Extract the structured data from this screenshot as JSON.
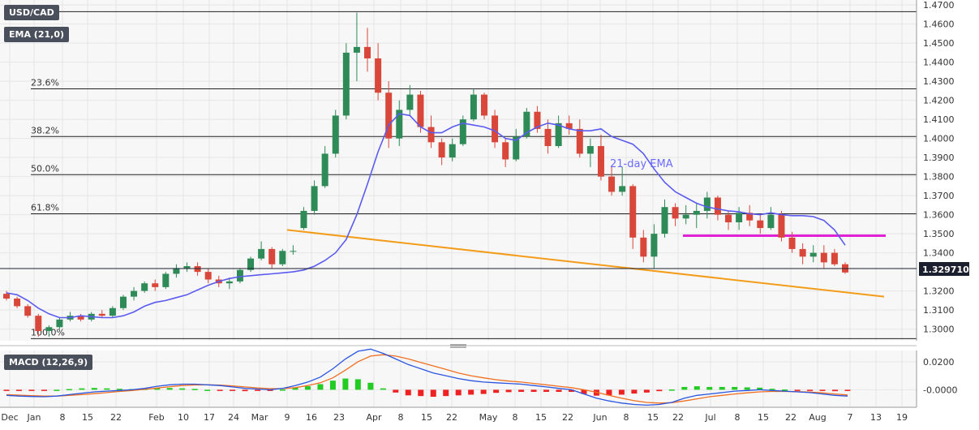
{
  "chart_data": [
    {
      "type": "candlestick",
      "symbol": "USD/CAD",
      "timeframe_note": "daily",
      "indicator_label": "EMA (21,0)",
      "y_axis": {
        "ticks": [
          "1.4700",
          "1.4600",
          "1.4500",
          "1.4400",
          "1.4300",
          "1.4200",
          "1.4100",
          "1.4000",
          "1.3900",
          "1.3800",
          "1.3700",
          "1.3600",
          "1.3500",
          "1.3400",
          "1.3200",
          "1.3100",
          "1.3000"
        ],
        "range": [
          1.296,
          1.4705
        ]
      },
      "x_axis": {
        "ticks": [
          "Dec",
          "Jan",
          "8",
          "15",
          "22",
          "Feb",
          "10",
          "17",
          "24",
          "Mar",
          "9",
          "16",
          "23",
          "Apr",
          "8",
          "15",
          "22",
          "May",
          "8",
          "15",
          "22",
          "Jun",
          "8",
          "15",
          "22",
          "Jul",
          "8",
          "15",
          "22",
          "Aug",
          "7",
          "13",
          "19"
        ]
      },
      "current_price": "1.329710",
      "fibonacci_levels": [
        {
          "label": "100.0%",
          "value": 1.295
        },
        {
          "label": "61.8%",
          "value": 1.3605
        },
        {
          "label": "50.0%",
          "value": 1.381
        },
        {
          "label": "38.2%",
          "value": 1.401
        },
        {
          "label": "23.6%",
          "value": 1.426
        },
        {
          "label": "",
          "value": 1.4665
        }
      ],
      "ema_label": "21-day EMA",
      "support_trendline": {
        "from": [
          "Mar 9",
          1.352
        ],
        "to": [
          "Aug 17",
          1.317
        ]
      },
      "resistance_line": {
        "from": [
          "Jun 24",
          1.349
        ],
        "to": [
          "Aug 7",
          1.349
        ]
      },
      "ema_series": [
        1.319,
        1.318,
        1.315,
        1.311,
        1.308,
        1.306,
        1.306,
        1.307,
        1.3065,
        1.306,
        1.306,
        1.307,
        1.309,
        1.312,
        1.314,
        1.315,
        1.3165,
        1.318,
        1.3205,
        1.323,
        1.325,
        1.3265,
        1.3275,
        1.328,
        1.3285,
        1.329,
        1.3295,
        1.33,
        1.331,
        1.333,
        1.336,
        1.34,
        1.347,
        1.36,
        1.376,
        1.393,
        1.407,
        1.413,
        1.412,
        1.406,
        1.403,
        1.403,
        1.406,
        1.408,
        1.407,
        1.406,
        1.404,
        1.4,
        1.399,
        1.403,
        1.406,
        1.408,
        1.407,
        1.405,
        1.404,
        1.404,
        1.405,
        1.401,
        1.399,
        1.397,
        1.392,
        1.384,
        1.377,
        1.372,
        1.369,
        1.366,
        1.364,
        1.363,
        1.362,
        1.3615,
        1.3605,
        1.36,
        1.361,
        1.36,
        1.3595,
        1.3595,
        1.359,
        1.357,
        1.352,
        1.344
      ],
      "candles": [
        [
          1.3185,
          1.32,
          1.315,
          1.316
        ],
        [
          1.316,
          1.317,
          1.311,
          1.312
        ],
        [
          1.312,
          1.313,
          1.306,
          1.307
        ],
        [
          1.307,
          1.308,
          1.296,
          1.299
        ],
        [
          1.299,
          1.302,
          1.296,
          1.301
        ],
        [
          1.301,
          1.306,
          1.3,
          1.305
        ],
        [
          1.305,
          1.309,
          1.304,
          1.307
        ],
        [
          1.307,
          1.308,
          1.304,
          1.305
        ],
        [
          1.305,
          1.309,
          1.304,
          1.308
        ],
        [
          1.308,
          1.31,
          1.306,
          1.307
        ],
        [
          1.307,
          1.312,
          1.306,
          1.311
        ],
        [
          1.311,
          1.318,
          1.31,
          1.317
        ],
        [
          1.317,
          1.322,
          1.315,
          1.32
        ],
        [
          1.32,
          1.325,
          1.319,
          1.324
        ],
        [
          1.324,
          1.326,
          1.32,
          1.322
        ],
        [
          1.322,
          1.33,
          1.321,
          1.329
        ],
        [
          1.329,
          1.334,
          1.327,
          1.332
        ],
        [
          1.332,
          1.335,
          1.33,
          1.333
        ],
        [
          1.333,
          1.335,
          1.328,
          1.33
        ],
        [
          1.33,
          1.332,
          1.324,
          1.326
        ],
        [
          1.326,
          1.328,
          1.322,
          1.324
        ],
        [
          1.324,
          1.327,
          1.321,
          1.325
        ],
        [
          1.325,
          1.332,
          1.324,
          1.331
        ],
        [
          1.331,
          1.338,
          1.33,
          1.337
        ],
        [
          1.337,
          1.346,
          1.336,
          1.342
        ],
        [
          1.342,
          1.343,
          1.332,
          1.334
        ],
        [
          1.334,
          1.342,
          1.333,
          1.341
        ],
        [
          1.341,
          1.344,
          1.339,
          1.341
        ],
        [
          1.353,
          1.364,
          1.352,
          1.362
        ],
        [
          1.362,
          1.378,
          1.36,
          1.375
        ],
        [
          1.375,
          1.396,
          1.374,
          1.392
        ],
        [
          1.392,
          1.415,
          1.39,
          1.412
        ],
        [
          1.412,
          1.45,
          1.41,
          1.445
        ],
        [
          1.445,
          1.466,
          1.43,
          1.448
        ],
        [
          1.448,
          1.458,
          1.435,
          1.442
        ],
        [
          1.442,
          1.45,
          1.42,
          1.424
        ],
        [
          1.424,
          1.43,
          1.395,
          1.4
        ],
        [
          1.4,
          1.42,
          1.396,
          1.415
        ],
        [
          1.415,
          1.428,
          1.412,
          1.423
        ],
        [
          1.423,
          1.425,
          1.403,
          1.406
        ],
        [
          1.406,
          1.412,
          1.395,
          1.398
        ],
        [
          1.398,
          1.4,
          1.386,
          1.39
        ],
        [
          1.39,
          1.4,
          1.388,
          1.397
        ],
        [
          1.397,
          1.412,
          1.396,
          1.41
        ],
        [
          1.41,
          1.426,
          1.409,
          1.423
        ],
        [
          1.423,
          1.424,
          1.41,
          1.412
        ],
        [
          1.412,
          1.415,
          1.395,
          1.398
        ],
        [
          1.398,
          1.4,
          1.385,
          1.389
        ],
        [
          1.389,
          1.405,
          1.388,
          1.401
        ],
        [
          1.401,
          1.416,
          1.4,
          1.414
        ],
        [
          1.414,
          1.417,
          1.403,
          1.405
        ],
        [
          1.405,
          1.41,
          1.392,
          1.396
        ],
        [
          1.396,
          1.412,
          1.395,
          1.408
        ],
        [
          1.408,
          1.412,
          1.402,
          1.405
        ],
        [
          1.405,
          1.41,
          1.39,
          1.392
        ],
        [
          1.392,
          1.4,
          1.385,
          1.396
        ],
        [
          1.396,
          1.402,
          1.378,
          1.38
        ],
        [
          1.38,
          1.385,
          1.37,
          1.372
        ],
        [
          1.372,
          1.385,
          1.37,
          1.375
        ],
        [
          1.375,
          1.376,
          1.342,
          1.348
        ],
        [
          1.348,
          1.352,
          1.335,
          1.338
        ],
        [
          1.338,
          1.355,
          1.332,
          1.35
        ],
        [
          1.35,
          1.368,
          1.348,
          1.364
        ],
        [
          1.364,
          1.366,
          1.354,
          1.358
        ],
        [
          1.358,
          1.365,
          1.355,
          1.36
        ],
        [
          1.36,
          1.366,
          1.353,
          1.362
        ],
        [
          1.362,
          1.372,
          1.358,
          1.369
        ],
        [
          1.369,
          1.37,
          1.357,
          1.36
        ],
        [
          1.36,
          1.362,
          1.352,
          1.356
        ],
        [
          1.356,
          1.364,
          1.352,
          1.361
        ],
        [
          1.361,
          1.365,
          1.354,
          1.357
        ],
        [
          1.357,
          1.36,
          1.35,
          1.353
        ],
        [
          1.353,
          1.364,
          1.352,
          1.36
        ],
        [
          1.36,
          1.362,
          1.346,
          1.348
        ],
        [
          1.348,
          1.351,
          1.34,
          1.342
        ],
        [
          1.342,
          1.345,
          1.334,
          1.338
        ],
        [
          1.338,
          1.344,
          1.335,
          1.34
        ],
        [
          1.34,
          1.344,
          1.332,
          1.335
        ],
        [
          1.34,
          1.342,
          1.333,
          1.334
        ],
        [
          1.334,
          1.335,
          1.329,
          1.3297
        ]
      ]
    },
    {
      "type": "macd",
      "label": "MACD (12,26,9)",
      "y_axis": {
        "ticks": [
          "0.0200",
          "-0.0000"
        ],
        "range": [
          -0.0125,
          0.028
        ]
      },
      "macd_line": [
        -0.004,
        -0.0045,
        -0.0048,
        -0.005,
        -0.0045,
        -0.0035,
        -0.0025,
        -0.0015,
        -0.001,
        -0.0005,
        0.0,
        0.001,
        0.0025,
        0.0035,
        0.004,
        0.004,
        0.0035,
        0.003,
        0.002,
        0.001,
        0.0005,
        0.0,
        0.001,
        0.003,
        0.0055,
        0.009,
        0.015,
        0.022,
        0.0275,
        0.029,
        0.026,
        0.022,
        0.018,
        0.015,
        0.012,
        0.01,
        0.008,
        0.0065,
        0.0055,
        0.005,
        0.0045,
        0.004,
        0.003,
        0.002,
        0.001,
        0.0,
        -0.003,
        -0.006,
        -0.008,
        -0.0095,
        -0.0105,
        -0.011,
        -0.0105,
        -0.009,
        -0.006,
        -0.004,
        -0.003,
        -0.002,
        -0.001,
        -0.0005,
        0.0,
        -0.0005,
        -0.001,
        -0.0015,
        -0.002,
        -0.003,
        -0.004,
        -0.0045
      ],
      "signal_line": [
        -0.0035,
        -0.0038,
        -0.0042,
        -0.0045,
        -0.0045,
        -0.004,
        -0.0035,
        -0.0028,
        -0.002,
        -0.0012,
        -0.0005,
        0.0003,
        0.0012,
        0.0022,
        0.003,
        0.0034,
        0.0035,
        0.0033,
        0.0028,
        0.002,
        0.0013,
        0.0008,
        0.0008,
        0.0015,
        0.003,
        0.005,
        0.0085,
        0.014,
        0.02,
        0.024,
        0.025,
        0.024,
        0.022,
        0.0195,
        0.017,
        0.0145,
        0.012,
        0.01,
        0.0085,
        0.0072,
        0.0062,
        0.0055,
        0.0045,
        0.0035,
        0.0025,
        0.0015,
        0.0,
        -0.0018,
        -0.004,
        -0.006,
        -0.0078,
        -0.009,
        -0.0095,
        -0.0092,
        -0.008,
        -0.0065,
        -0.005,
        -0.004,
        -0.003,
        -0.0022,
        -0.0015,
        -0.0012,
        -0.0012,
        -0.0014,
        -0.0017,
        -0.0022,
        -0.003,
        -0.0037
      ]
    }
  ]
}
